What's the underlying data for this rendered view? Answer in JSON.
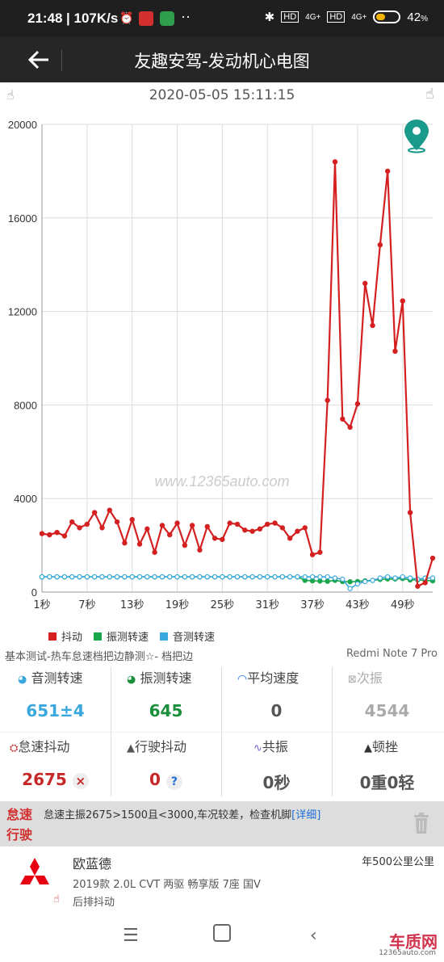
{
  "status_bar": {
    "time": "21:48",
    "net_speed": "107K/s",
    "signal_label": "4G+",
    "hd_label": "HD",
    "battery_percent": "42",
    "battery_level": 0.42
  },
  "header": {
    "title": "友趣安驾-发动机心电图",
    "back_icon": "arrow-left-icon"
  },
  "record": {
    "datetime": "2020-05-05 15:11:15"
  },
  "chart_data": {
    "type": "line",
    "x": [
      "1秒",
      "2",
      "3",
      "4",
      "5",
      "6",
      "7秒",
      "8",
      "9",
      "10",
      "11",
      "12",
      "13秒",
      "14",
      "15",
      "16",
      "17",
      "18",
      "19秒",
      "20",
      "21",
      "22",
      "23",
      "24",
      "25秒",
      "26",
      "27",
      "28",
      "29",
      "30",
      "31秒",
      "32",
      "33",
      "34",
      "35",
      "36",
      "37秒",
      "38",
      "39",
      "40",
      "41",
      "42",
      "43秒",
      "44",
      "45",
      "46",
      "47",
      "48",
      "49秒",
      "50",
      "51",
      "52",
      "53"
    ],
    "x_tick_labels": [
      "1秒",
      "7秒",
      "13秒",
      "19秒",
      "25秒",
      "31秒",
      "37秒",
      "43秒",
      "49秒"
    ],
    "ylim": [
      0,
      20000
    ],
    "y_ticks": [
      "0",
      "4000",
      "8000",
      "12000",
      "16000",
      "20000"
    ],
    "grid": true,
    "legend_position": "bottom-left",
    "series": [
      {
        "name": "抖动",
        "color": "#d42020",
        "values": [
          2500,
          2450,
          2550,
          2400,
          3000,
          2750,
          2900,
          3400,
          2750,
          3500,
          3000,
          2100,
          3100,
          2050,
          2700,
          1700,
          2850,
          2450,
          2950,
          2000,
          2850,
          1800,
          2800,
          2300,
          2250,
          2950,
          2900,
          2650,
          2600,
          2700,
          2900,
          2950,
          2750,
          2300,
          2600,
          2750,
          1600,
          1700,
          8200,
          18400,
          7400,
          7050,
          8050,
          13200,
          11400,
          14850,
          18000,
          10300,
          12450,
          3400,
          250,
          400,
          1450
        ]
      },
      {
        "name": "振测转速",
        "color": "#1aa64a",
        "values": [
          650,
          650,
          650,
          650,
          650,
          650,
          650,
          650,
          650,
          650,
          650,
          650,
          650,
          650,
          650,
          650,
          650,
          650,
          650,
          650,
          650,
          650,
          650,
          650,
          650,
          650,
          650,
          650,
          650,
          650,
          650,
          650,
          650,
          650,
          650,
          500,
          480,
          470,
          460,
          500,
          450,
          440,
          450,
          480,
          500,
          540,
          560,
          560,
          580,
          520,
          520,
          500,
          480
        ]
      },
      {
        "name": "音测转速",
        "color": "#3aa8dc",
        "values": [
          650,
          650,
          650,
          650,
          650,
          650,
          650,
          650,
          650,
          650,
          650,
          650,
          650,
          650,
          650,
          650,
          650,
          650,
          650,
          650,
          650,
          650,
          650,
          650,
          650,
          650,
          650,
          650,
          650,
          650,
          650,
          650,
          650,
          650,
          650,
          650,
          650,
          650,
          650,
          600,
          550,
          150,
          350,
          450,
          500,
          600,
          650,
          600,
          650,
          600,
          550,
          600,
          600
        ]
      }
    ],
    "watermark": "www.12365auto.com"
  },
  "test_info": "基本测试-热车怠速档把边静测☆- 档把边",
  "device_model": "Redmi Note 7 Pro",
  "stats": [
    {
      "label": "音测转速",
      "value": "651±4",
      "color": "#3aa8dc",
      "icon": "gauge-icon"
    },
    {
      "label": "振测转速",
      "value": "645",
      "color": "#1a8f3c",
      "icon": "gauge-icon"
    },
    {
      "label": "平均速度",
      "value": "0",
      "color": "#555555",
      "icon": "speedometer-icon"
    },
    {
      "label": "次振",
      "value": "4544",
      "color": "#aaaaaa",
      "icon": "vibration-icon"
    },
    {
      "label": "怠速抖动",
      "value": "2675",
      "color": "#c62828",
      "icon": "engine-icon",
      "badge": "×"
    },
    {
      "label": "行驶抖动",
      "value": "0",
      "color": "#c62828",
      "icon": "warning-icon",
      "badge": "?"
    },
    {
      "label": "共振",
      "value": "0秒",
      "color": "#555555",
      "icon": "pulse-icon"
    },
    {
      "label": "顿挫",
      "value": "0重0轻",
      "color": "#555555",
      "icon": "triangle-icon"
    }
  ],
  "alert": {
    "tag_line1": "怠速",
    "tag_line2": "行驶",
    "message": "怠速主振2675>1500且<3000,车况较差，检查机脚",
    "link": "[详细]"
  },
  "car": {
    "brand": "欧蓝德",
    "model": "2019款 2.0L CVT 两驱 畅享版 7座 国V",
    "issue": "后排抖动",
    "mileage": "年500公里公里"
  },
  "watermark_brand": "车质网",
  "watermark_site": "12365auto.com"
}
